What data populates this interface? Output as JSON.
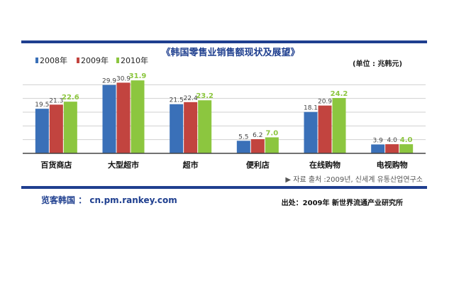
{
  "chart_data": {
    "type": "bar",
    "title": "《韩国零售业销售额现状及展望》",
    "unit_label": "(单位 : 兆韩元)",
    "categories": [
      "百货商店",
      "大型超市",
      "超市",
      "便利店",
      "在线购物",
      "电视购物"
    ],
    "series": [
      {
        "name": "2008年",
        "values": [
          19.5,
          29.9,
          21.5,
          5.5,
          18.1,
          3.9
        ],
        "labels": [
          "19.5",
          "29.9",
          "21.5",
          "5.5",
          "18.1",
          "3.9"
        ]
      },
      {
        "name": "2009年",
        "values": [
          21.3,
          30.9,
          22.4,
          6.2,
          20.9,
          4.0
        ],
        "labels": [
          "21.3",
          "30.9",
          "22.4",
          "6.2",
          "20.9",
          "4.0"
        ]
      },
      {
        "name": "2010年",
        "values": [
          22.6,
          31.9,
          23.2,
          7.0,
          24.2,
          4.0
        ],
        "labels": [
          "22.6",
          "31.9",
          "23.2",
          "7.0",
          "24.2",
          "4.0"
        ]
      }
    ],
    "ylim": [
      0,
      36
    ],
    "grid": true,
    "legend": "top-left",
    "colors": [
      "#3a70b8",
      "#c2443f",
      "#8cc63f"
    ],
    "source_kr": "▶ 자료 출처 :2009년, 신세계 유통산업연구소"
  },
  "footer": {
    "left": "览客韩国 ： cn.pm.rankey.com",
    "right": "出处：2009年 新世界流通产业研究所"
  }
}
